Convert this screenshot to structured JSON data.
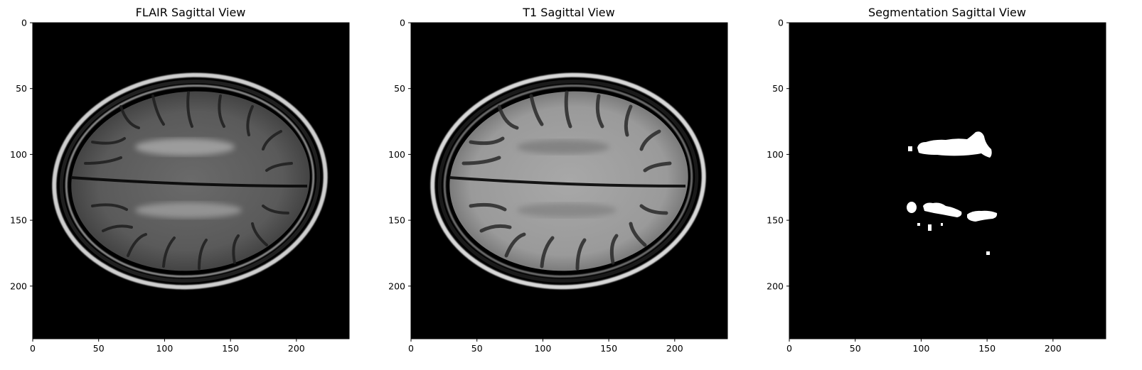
{
  "figure": {
    "panels": [
      {
        "title": "FLAIR Sagittal View",
        "kind": "flair"
      },
      {
        "title": "T1 Sagittal View",
        "kind": "t1"
      },
      {
        "title": "Segmentation Sagittal View",
        "kind": "seg"
      }
    ],
    "axis_range": {
      "x": [
        0,
        240
      ],
      "y": [
        0,
        240
      ]
    },
    "x_ticks": [
      "0",
      "50",
      "100",
      "150",
      "200"
    ],
    "y_ticks": [
      "0",
      "50",
      "100",
      "150",
      "200"
    ],
    "colors": {
      "background": "#000000",
      "axes": "#000000",
      "page": "#ffffff"
    }
  }
}
